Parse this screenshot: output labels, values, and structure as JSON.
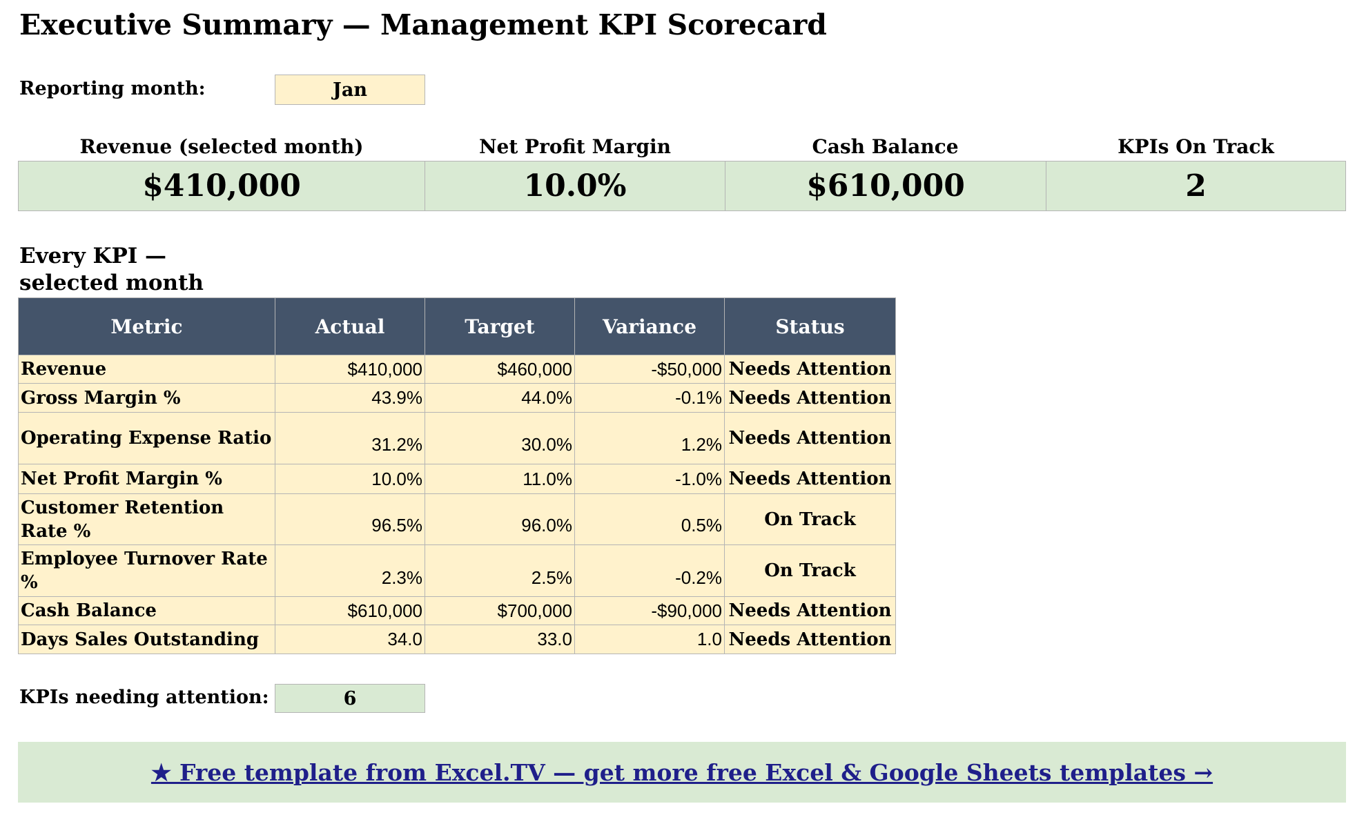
{
  "title": "Executive Summary — Management KPI Scorecard",
  "reporting_month": {
    "label": "Reporting month:",
    "value": "Jan"
  },
  "summary_cards": [
    {
      "label": "Revenue (selected month)",
      "value": "$410,000"
    },
    {
      "label": "Net Profit Margin",
      "value": "10.0%"
    },
    {
      "label": "Cash Balance",
      "value": "$610,000"
    },
    {
      "label": "KPIs On Track",
      "value": "2"
    }
  ],
  "kpi_section_title": "Every KPI — selected month",
  "kpi_table": {
    "headers": [
      "Metric",
      "Actual",
      "Target",
      "Variance",
      "Status"
    ],
    "rows": [
      {
        "metric": "Revenue",
        "actual": "$410,000",
        "target": "$460,000",
        "variance": "-$50,000",
        "status": "Needs Attention"
      },
      {
        "metric": "Gross Margin %",
        "actual": "43.9%",
        "target": "44.0%",
        "variance": "-0.1%",
        "status": "Needs Attention"
      },
      {
        "metric": "Operating Expense Ratio",
        "actual": "31.2%",
        "target": "30.0%",
        "variance": "1.2%",
        "status": "Needs Attention"
      },
      {
        "metric": "Net Profit Margin %",
        "actual": "10.0%",
        "target": "11.0%",
        "variance": "-1.0%",
        "status": "Needs Attention"
      },
      {
        "metric": "Customer Retention Rate %",
        "actual": "96.5%",
        "target": "96.0%",
        "variance": "0.5%",
        "status": "On Track"
      },
      {
        "metric": "Employee Turnover Rate %",
        "actual": "2.3%",
        "target": "2.5%",
        "variance": "-0.2%",
        "status": "On Track"
      },
      {
        "metric": "Cash Balance",
        "actual": "$610,000",
        "target": "$700,000",
        "variance": "-$90,000",
        "status": "Needs Attention"
      },
      {
        "metric": "Days Sales Outstanding",
        "actual": "34.0",
        "target": "33.0",
        "variance": "1.0",
        "status": "Needs Attention"
      }
    ]
  },
  "attention": {
    "label": "KPIs needing attention:",
    "value": "6"
  },
  "banner_link": "★ Free template from Excel.TV — get more free Excel & Google Sheets templates →",
  "colors": {
    "header_bg": "#44546a",
    "input_fill": "#fff2cc",
    "result_fill": "#d9ead3",
    "link": "#1f1f8a"
  }
}
